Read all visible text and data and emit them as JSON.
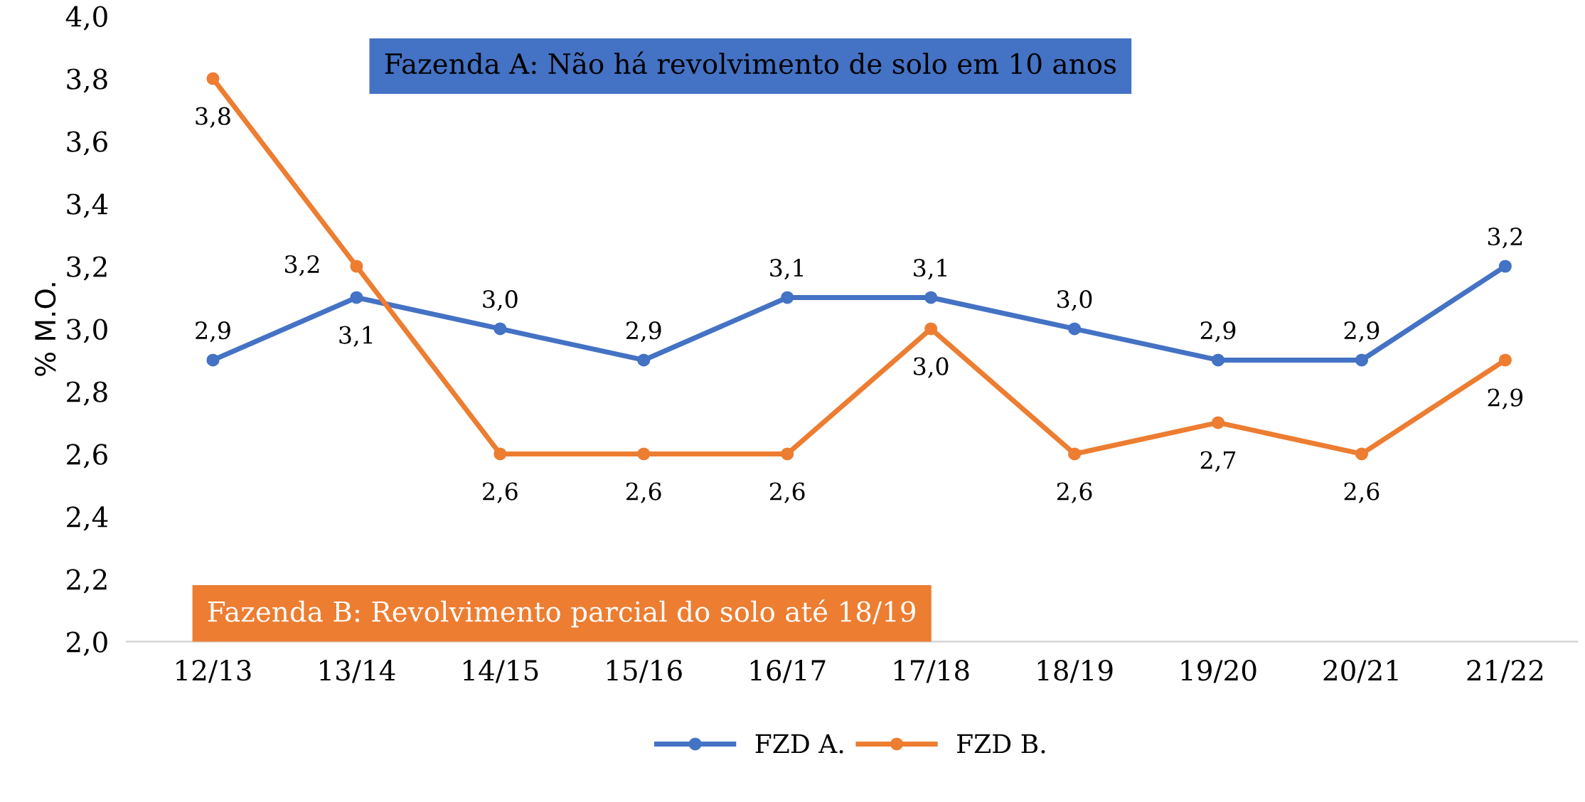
{
  "chart_data": {
    "type": "line",
    "ylabel": "% M.O.",
    "categories": [
      "12/13",
      "13/14",
      "14/15",
      "15/16",
      "16/17",
      "17/18",
      "18/19",
      "19/20",
      "20/21",
      "21/22"
    ],
    "series": [
      {
        "name": "FZD A.",
        "color": "#4472c4",
        "values": [
          2.9,
          3.1,
          3.0,
          2.9,
          3.1,
          3.1,
          3.0,
          2.9,
          2.9,
          3.2
        ],
        "value_labels": [
          "2,9",
          "3,1",
          "3,0",
          "2,9",
          "3,1",
          "3,1",
          "3,0",
          "2,9",
          "2,9",
          "3,2"
        ]
      },
      {
        "name": "FZD B.",
        "color": "#ed7d31",
        "values": [
          3.8,
          3.2,
          2.6,
          2.6,
          2.6,
          3.0,
          2.6,
          2.7,
          2.6,
          2.9
        ],
        "value_labels": [
          "3,8",
          "3,2",
          "2,6",
          "2,6",
          "2,6",
          "3,0",
          "2,6",
          "2,7",
          "2,6",
          "2,9"
        ]
      }
    ],
    "ylim": [
      2.0,
      4.0
    ],
    "yticks": [
      {
        "value": 2.0,
        "label": "2,0"
      },
      {
        "value": 2.2,
        "label": "2,2"
      },
      {
        "value": 2.4,
        "label": "2,4"
      },
      {
        "value": 2.6,
        "label": "2,6"
      },
      {
        "value": 2.8,
        "label": "2,8"
      },
      {
        "value": 3.0,
        "label": "3,0"
      },
      {
        "value": 3.2,
        "label": "3,2"
      },
      {
        "value": 3.4,
        "label": "3,4"
      },
      {
        "value": 3.6,
        "label": "3,6"
      },
      {
        "value": 3.8,
        "label": "3,8"
      },
      {
        "value": 4.0,
        "label": "4,0"
      }
    ],
    "annotations": [
      "Fazenda A: Não há revolvimento de solo em 10 anos",
      "Fazenda B: Revolvimento parcial do solo até 18/19"
    ],
    "marker": "circle",
    "line_style": "solid",
    "grid": false,
    "legend": "bottom"
  }
}
